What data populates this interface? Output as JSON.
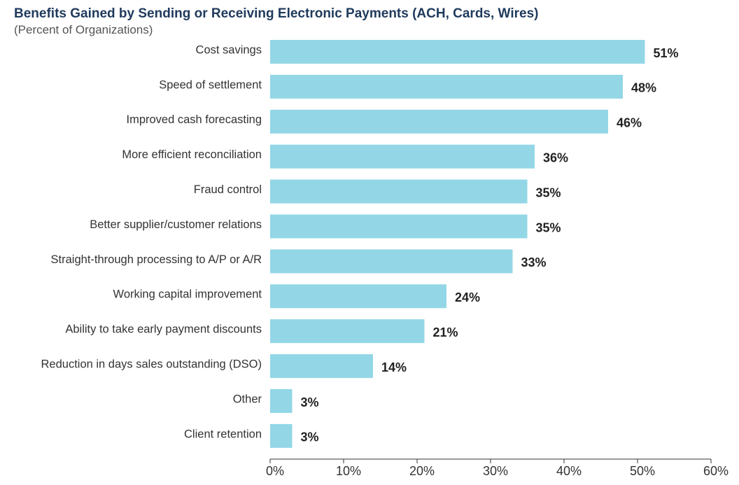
{
  "chart_data": {
    "type": "bar",
    "orientation": "horizontal",
    "title": "Benefits Gained by Sending or Receiving Electronic Payments (ACH, Cards, Wires)",
    "subtitle": "(Percent of Organizations)",
    "categories": [
      "Cost savings",
      "Speed of settlement",
      "Improved cash forecasting",
      "More efficient reconciliation",
      "Fraud control",
      "Better supplier/customer relations",
      "Straight-through processing to A/P or A/R",
      "Working capital improvement",
      "Ability to take early payment  discounts",
      "Reduction in days sales outstanding  (DSO)",
      "Other",
      "Client retention"
    ],
    "values": [
      51,
      48,
      46,
      36,
      35,
      35,
      33,
      24,
      21,
      14,
      3,
      3
    ],
    "value_labels": [
      "51%",
      "48%",
      "46%",
      "36%",
      "35%",
      "35%",
      "33%",
      "24%",
      "21%",
      "14%",
      "3%",
      "3%"
    ],
    "xlim": [
      0,
      60
    ],
    "xticks": [
      "0%",
      "10%",
      "20%",
      "30%",
      "40%",
      "50%",
      "60%"
    ],
    "bar_color": "#93d7e6",
    "grid": false,
    "legend": "none"
  }
}
